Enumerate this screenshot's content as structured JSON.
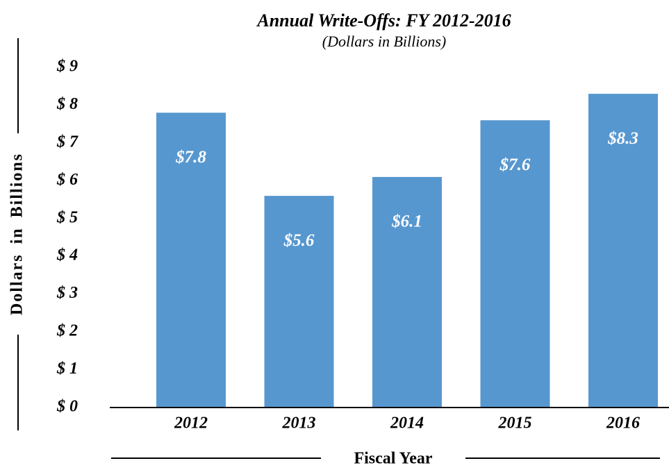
{
  "chart_data": {
    "type": "bar",
    "title": "Annual Write-Offs: FY 2012-2016",
    "subtitle": "(Dollars in Billions)",
    "x_label": "Fiscal Year",
    "y_label": "Dollars in Billions",
    "categories": [
      "2012",
      "2013",
      "2014",
      "2015",
      "2016"
    ],
    "values": [
      7.8,
      5.6,
      6.1,
      7.6,
      8.3
    ],
    "value_labels": [
      "$7.8",
      "$5.6",
      "$6.1",
      "$7.6",
      "$8.3"
    ],
    "color": "#5797cf",
    "ylim": [
      0,
      9
    ],
    "yticks": [
      {
        "value": 0,
        "label": "$ 0"
      },
      {
        "value": 1,
        "label": "$ 1"
      },
      {
        "value": 2,
        "label": "$ 2"
      },
      {
        "value": 3,
        "label": "$ 3"
      },
      {
        "value": 4,
        "label": "$ 4"
      },
      {
        "value": 5,
        "label": "$ 5"
      },
      {
        "value": 6,
        "label": "$ 6"
      },
      {
        "value": 7,
        "label": "$ 7"
      },
      {
        "value": 8,
        "label": "$ 8"
      },
      {
        "value": 9,
        "label": "$ 9"
      }
    ],
    "grid": false
  }
}
